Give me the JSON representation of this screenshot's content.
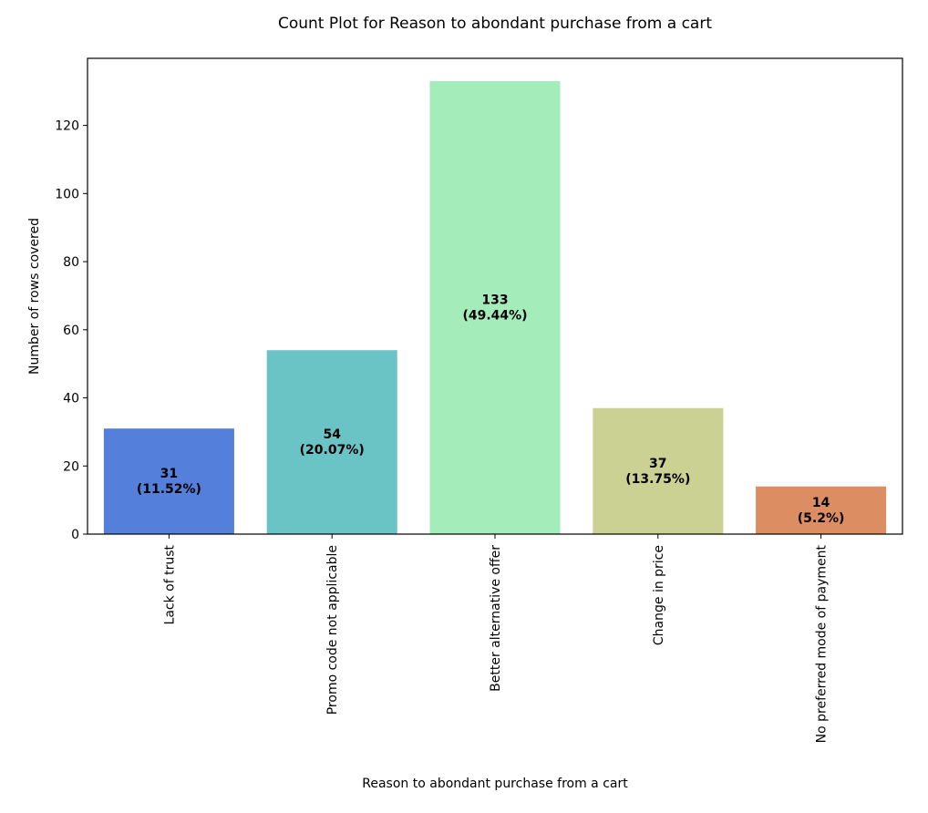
{
  "chart_data": {
    "type": "bar",
    "title": "Count Plot for Reason to abondant purchase from a cart",
    "xlabel": "Reason to abondant purchase from a cart",
    "ylabel": "Number of rows covered",
    "categories": [
      "Lack of trust",
      "Promo code not applicable",
      "Better alternative offer",
      "Change in price",
      "No preferred mode of payment"
    ],
    "values": [
      31,
      54,
      133,
      37,
      14
    ],
    "percent_labels": [
      "(11.52%)",
      "(20.07%)",
      "(49.44%)",
      "(13.75%)",
      "(5.2%)"
    ],
    "value_labels": [
      "31",
      "54",
      "133",
      "37",
      "14"
    ],
    "colors": [
      "#547fdb",
      "#6ac4c5",
      "#a5ecbb",
      "#cbd193",
      "#dc8e62"
    ],
    "y_ticks": [
      0,
      20,
      40,
      60,
      80,
      100,
      120
    ],
    "y_tick_labels": [
      "0",
      "20",
      "40",
      "60",
      "80",
      "100",
      "120"
    ],
    "ylim": [
      0,
      139.7
    ],
    "grid": false
  }
}
